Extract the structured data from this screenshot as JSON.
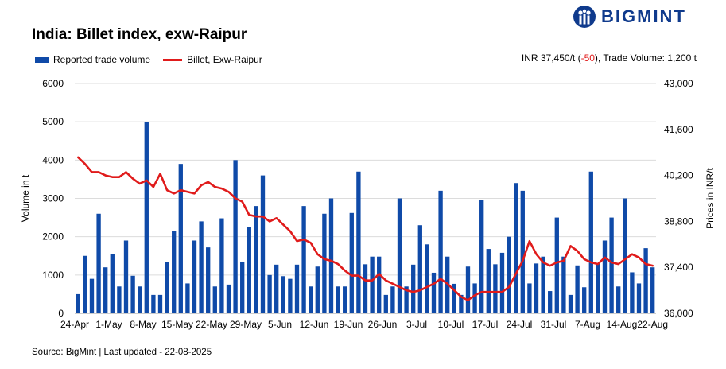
{
  "header": {
    "title": "India: Billet index, exw-Raipur",
    "logo_text": "BIGMINT"
  },
  "summary": {
    "prefix": "INR 37,450/t (",
    "change": "-50",
    "suffix": "), Trade Volume: 1,200 t"
  },
  "legend": {
    "bars": "Reported trade volume",
    "line": "Billet, Exw-Raipur"
  },
  "footer": {
    "source": "Source: BigMint | Last updated - 22-08-2025"
  },
  "colors": {
    "bar": "#0f4aa8",
    "line": "#e01b1b",
    "brand": "#0f3a8c",
    "grid": "#dcdcdc"
  },
  "chart_data": {
    "type": "bar",
    "title": "India: Billet index, exw-Raipur",
    "ylabel": "Volume in t",
    "y2label": "Prices in INR/t",
    "ylim": [
      0,
      6000
    ],
    "y2lim": [
      36000,
      43000
    ],
    "yticks": [
      "0",
      "1000",
      "2000",
      "3000",
      "4000",
      "5000",
      "6000"
    ],
    "y2ticks": [
      "36,000",
      "37,400",
      "38,800",
      "40,200",
      "41,600",
      "43,000"
    ],
    "xtick_labels": [
      "24-Apr",
      "1-May",
      "8-May",
      "15-May",
      "22-May",
      "29-May",
      "5-Jun",
      "12-Jun",
      "19-Jun",
      "26-Jun",
      "3-Jul",
      "10-Jul",
      "17-Jul",
      "24-Jul",
      "31-Jul",
      "7-Aug",
      "14-Aug",
      "22-Aug"
    ],
    "grid": true,
    "legend_position": "top-left",
    "series": [
      {
        "name": "Reported trade volume",
        "type": "bar",
        "axis": "left",
        "values": [
          500,
          1500,
          900,
          2600,
          1200,
          1550,
          700,
          1900,
          980,
          700,
          5000,
          480,
          480,
          1330,
          2150,
          3900,
          780,
          1900,
          2400,
          1720,
          700,
          2480,
          750,
          4000,
          1350,
          2250,
          2800,
          3600,
          1000,
          1270,
          970,
          900,
          1270,
          2800,
          700,
          1220,
          2600,
          3000,
          700,
          700,
          2620,
          3700,
          1280,
          1480,
          1480,
          480,
          700,
          3000,
          700,
          1270,
          2300,
          1800,
          1060,
          3200,
          1480,
          770,
          480,
          1220,
          780,
          2950,
          1680,
          1280,
          1580,
          2000,
          3400,
          3200,
          780,
          1300,
          1480,
          580,
          2500,
          1480,
          480,
          1250,
          680,
          3700,
          1300,
          1900,
          2500,
          700,
          3000,
          1070,
          780,
          1700,
          1200
        ]
      },
      {
        "name": "Billet, Exw-Raipur",
        "type": "line",
        "axis": "right",
        "values": [
          40750,
          40550,
          40300,
          40300,
          40200,
          40150,
          40150,
          40300,
          40100,
          39950,
          40050,
          39850,
          40250,
          39750,
          39650,
          39750,
          39700,
          39650,
          39900,
          40000,
          39850,
          39800,
          39700,
          39500,
          39400,
          39000,
          38950,
          38950,
          38800,
          38900,
          38700,
          38500,
          38200,
          38250,
          38150,
          37800,
          37650,
          37600,
          37500,
          37300,
          37150,
          37150,
          37000,
          37000,
          37200,
          37000,
          36900,
          36800,
          36700,
          36650,
          36700,
          36800,
          36900,
          37050,
          36900,
          36700,
          36500,
          36400,
          36550,
          36650,
          36650,
          36650,
          36650,
          36800,
          37200,
          37600,
          38200,
          37800,
          37550,
          37450,
          37550,
          37600,
          38050,
          37900,
          37650,
          37550,
          37500,
          37700,
          37550,
          37500,
          37650,
          37800,
          37700,
          37500,
          37450
        ]
      }
    ]
  }
}
